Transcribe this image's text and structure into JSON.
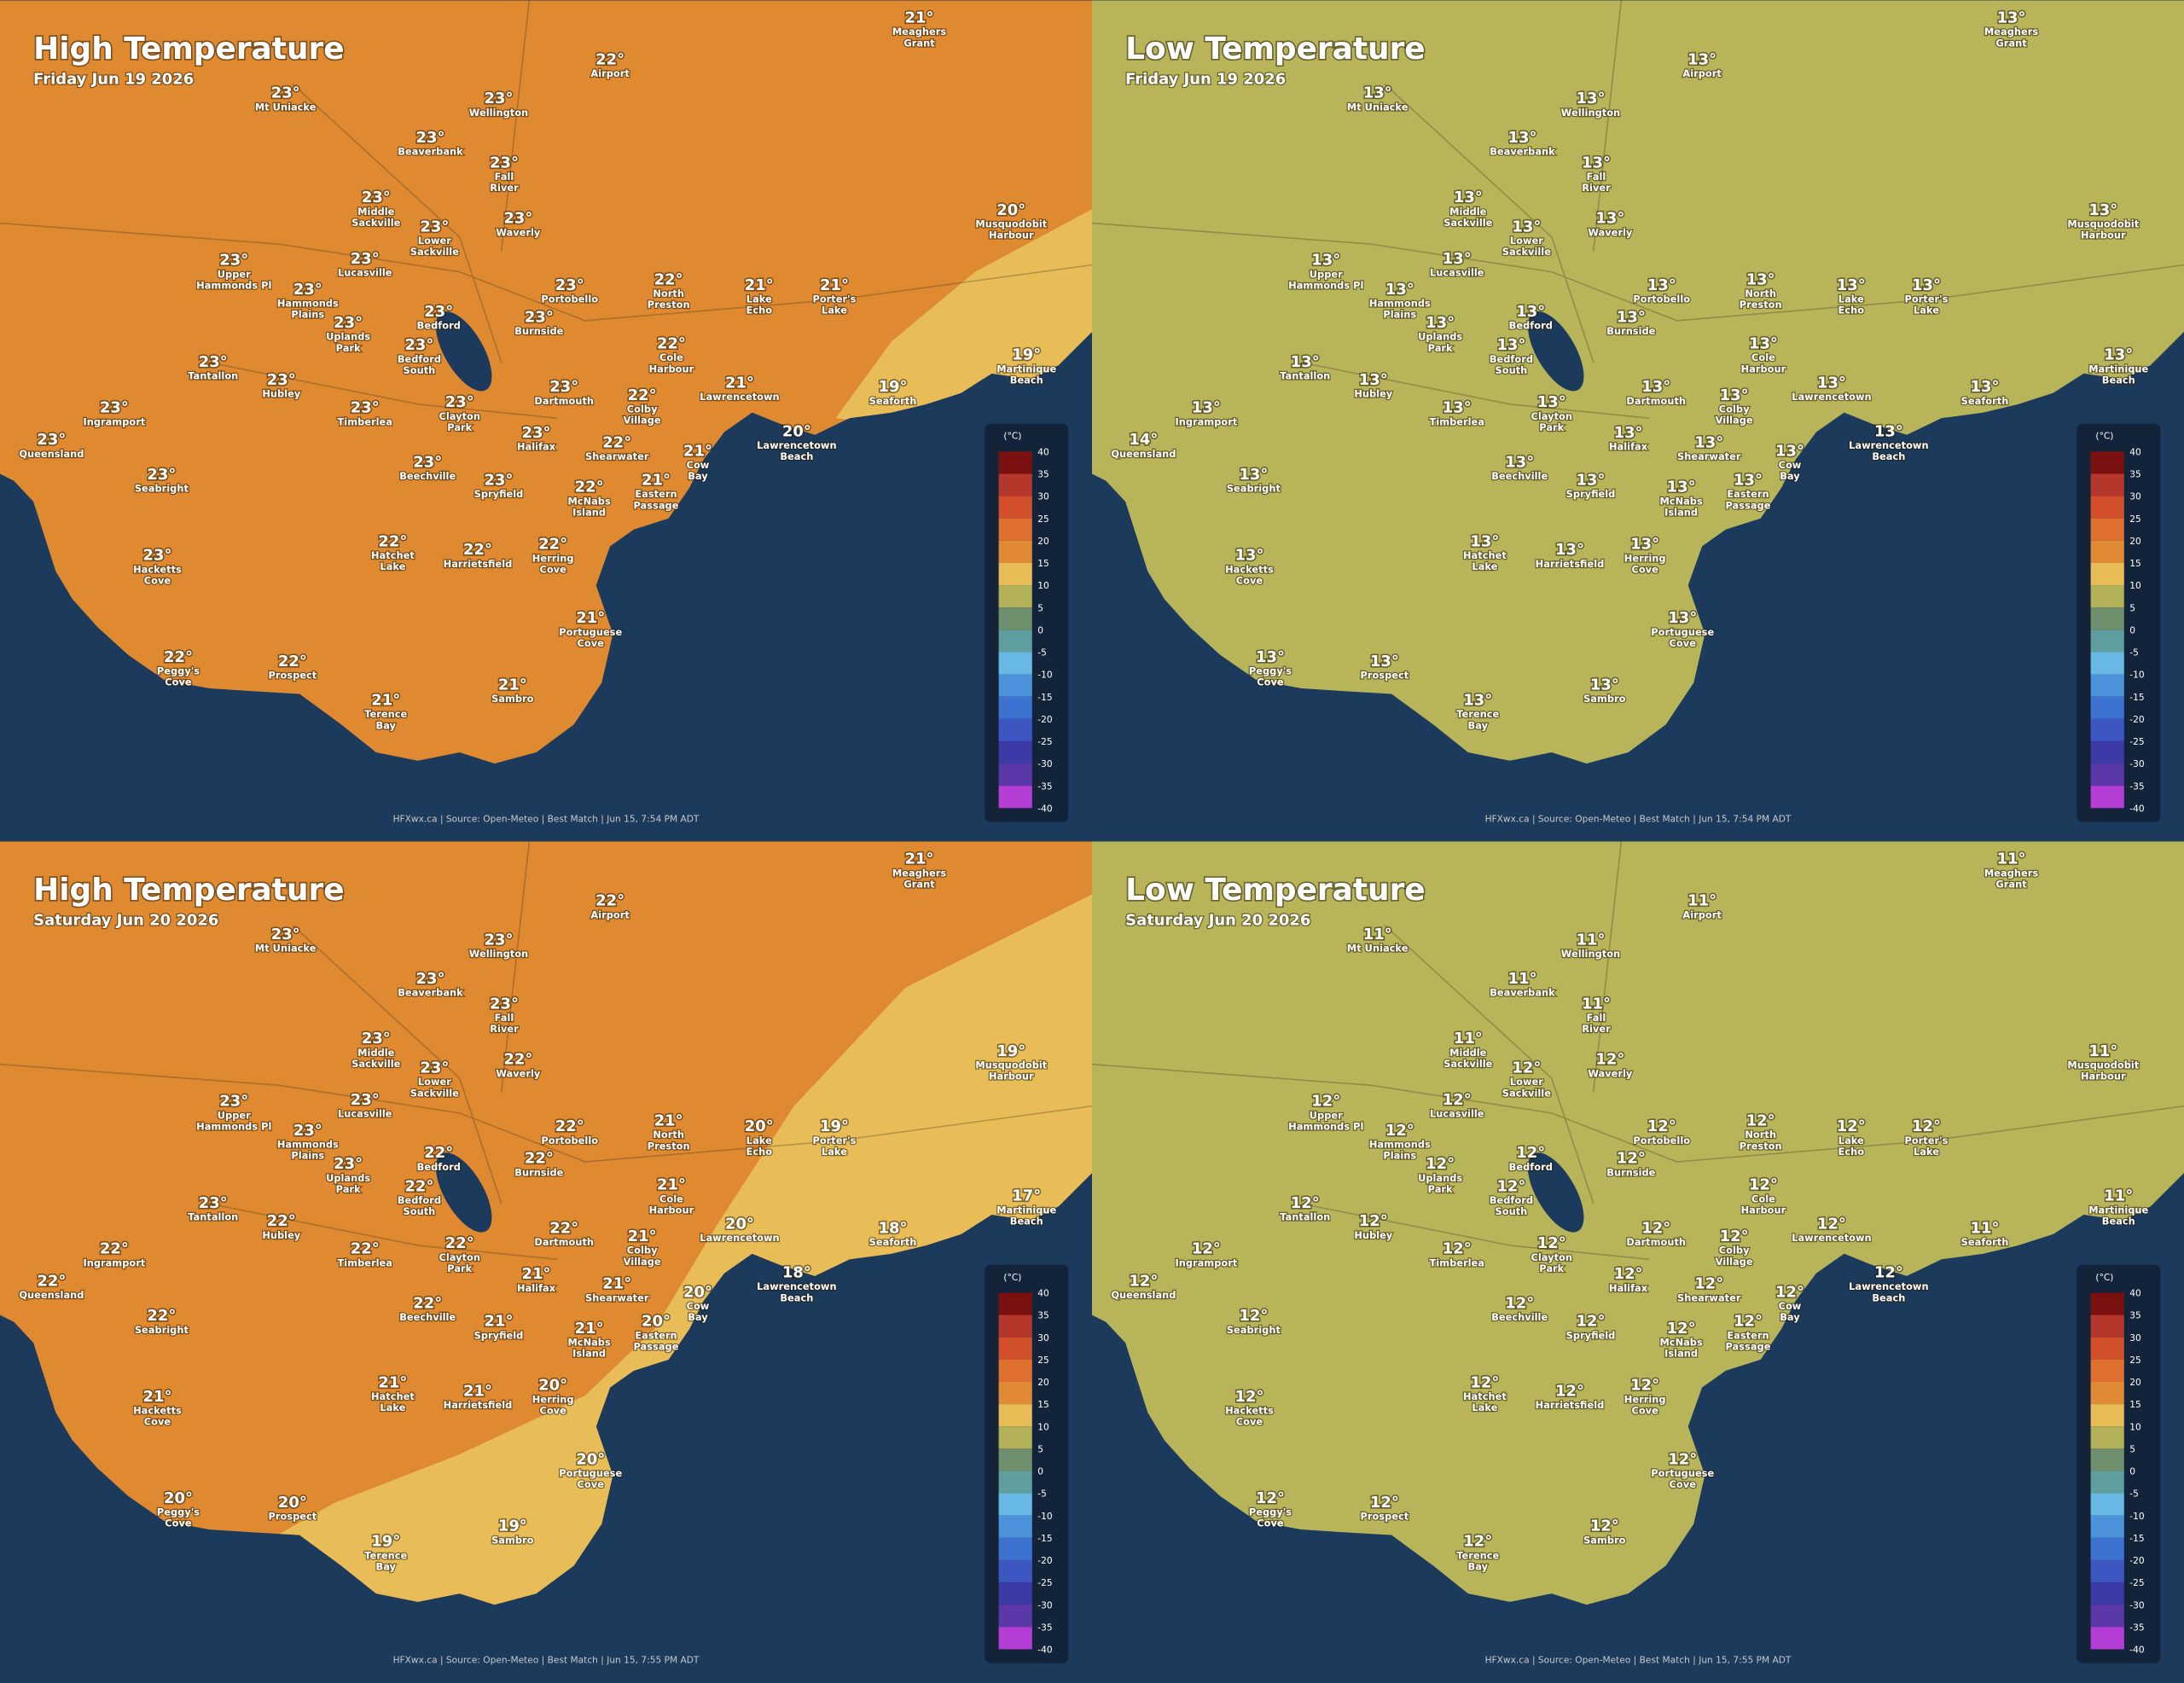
{
  "places": [
    [
      "Meaghers",
      "Grant"
    ],
    [
      "Airport"
    ],
    [
      "Mt Uniacke"
    ],
    [
      "Wellington"
    ],
    [
      "Beaverbank"
    ],
    [
      "Fall",
      "River"
    ],
    [
      "Middle",
      "Sackville"
    ],
    [
      "Lower",
      "Sackville"
    ],
    [
      "Waverly"
    ],
    [
      "Musquodobit",
      "Harbour"
    ],
    [
      "Upper",
      "Hammonds Pl"
    ],
    [
      "Lucasville"
    ],
    [
      "Hammonds",
      "Plains"
    ],
    [
      "Portobello"
    ],
    [
      "North",
      "Preston"
    ],
    [
      "Lake",
      "Echo"
    ],
    [
      "Porter's",
      "Lake"
    ],
    [
      "Uplands",
      "Park"
    ],
    [
      "Bedford"
    ],
    [
      "Burnside"
    ],
    [
      "Bedford",
      "South"
    ],
    [
      "Cole",
      "Harbour"
    ],
    [
      "Martinique",
      "Beach"
    ],
    [
      "Tantallon"
    ],
    [
      "Hubley"
    ],
    [
      "Dartmouth"
    ],
    [
      "Colby",
      "Village"
    ],
    [
      "Lawrencetown"
    ],
    [
      "Seaforth"
    ],
    [
      "Ingramport"
    ],
    [
      "Timberlea"
    ],
    [
      "Clayton",
      "Park"
    ],
    [
      "Halifax"
    ],
    [
      "Lawrencetown",
      "Beach"
    ],
    [
      "Shearwater"
    ],
    [
      "Cow",
      "Bay"
    ],
    [
      "Queensland"
    ],
    [
      "Beechville"
    ],
    [
      "Spryfield"
    ],
    [
      "McNabs",
      "Island"
    ],
    [
      "Eastern",
      "Passage"
    ],
    [
      "Seabright"
    ],
    [
      "Hatchet",
      "Lake"
    ],
    [
      "Harrietsfield"
    ],
    [
      "Herring",
      "Cove"
    ],
    [
      "Hacketts",
      "Cove"
    ],
    [
      "Portuguese",
      "Cove"
    ],
    [
      "Peggy's",
      "Cove"
    ],
    [
      "Prospect"
    ],
    [
      "Terence",
      "Bay"
    ],
    [
      "Sambro"
    ]
  ],
  "legend": {
    "unit": "(°C)",
    "ticks": [
      40,
      35,
      30,
      25,
      20,
      15,
      10,
      5,
      0,
      -5,
      -10,
      -15,
      -20,
      -25,
      -30,
      -35,
      -40
    ]
  },
  "panels": [
    {
      "title": "High Temperature",
      "date": "Friday Jun 19 2026",
      "footer": "HFXwx.ca | Source: Open-Meteo | Best Match | Jun 15, 7:54 PM ADT",
      "temps": [
        "21°",
        "22°",
        "23°",
        "23°",
        "23°",
        "23°",
        "23°",
        "23°",
        "23°",
        "20°",
        "23°",
        "23°",
        "23°",
        "23°",
        "22°",
        "21°",
        "21°",
        "23°",
        "23°",
        "23°",
        "23°",
        "22°",
        "19°",
        "23°",
        "23°",
        "23°",
        "22°",
        "21°",
        "19°",
        "23°",
        "23°",
        "23°",
        "23°",
        "20°",
        "22°",
        "21°",
        "23°",
        "23°",
        "23°",
        "22°",
        "21°",
        "23°",
        "22°",
        "22°",
        "22°",
        "23°",
        "21°",
        "22°",
        "22°",
        "21°",
        "21°"
      ]
    },
    {
      "title": "Low Temperature",
      "date": "Friday Jun 19 2026",
      "footer": "HFXwx.ca | Source: Open-Meteo | Best Match | Jun 15, 7:54 PM ADT",
      "temps": [
        "13°",
        "13°",
        "13°",
        "13°",
        "13°",
        "13°",
        "13°",
        "13°",
        "13°",
        "13°",
        "13°",
        "13°",
        "13°",
        "13°",
        "13°",
        "13°",
        "13°",
        "13°",
        "13°",
        "13°",
        "13°",
        "13°",
        "13°",
        "13°",
        "13°",
        "13°",
        "13°",
        "13°",
        "13°",
        "13°",
        "13°",
        "13°",
        "13°",
        "13°",
        "13°",
        "13°",
        "14°",
        "13°",
        "13°",
        "13°",
        "13°",
        "13°",
        "13°",
        "13°",
        "13°",
        "13°",
        "13°",
        "13°",
        "13°",
        "13°",
        "13°"
      ]
    },
    {
      "title": "High Temperature",
      "date": "Saturday Jun 20 2026",
      "footer": "HFXwx.ca | Source: Open-Meteo | Best Match | Jun 15, 7:55 PM ADT",
      "temps": [
        "21°",
        "22°",
        "23°",
        "23°",
        "23°",
        "23°",
        "23°",
        "23°",
        "22°",
        "19°",
        "23°",
        "23°",
        "23°",
        "22°",
        "21°",
        "20°",
        "19°",
        "23°",
        "22°",
        "22°",
        "22°",
        "21°",
        "17°",
        "23°",
        "22°",
        "22°",
        "21°",
        "20°",
        "18°",
        "22°",
        "22°",
        "22°",
        "21°",
        "18°",
        "21°",
        "20°",
        "22°",
        "22°",
        "21°",
        "21°",
        "20°",
        "22°",
        "21°",
        "21°",
        "20°",
        "21°",
        "20°",
        "20°",
        "20°",
        "19°",
        "19°"
      ]
    },
    {
      "title": "Low Temperature",
      "date": "Saturday Jun 20 2026",
      "footer": "HFXwx.ca | Source: Open-Meteo | Best Match | Jun 15, 7:55 PM ADT",
      "temps": [
        "11°",
        "11°",
        "11°",
        "11°",
        "11°",
        "11°",
        "11°",
        "12°",
        "12°",
        "11°",
        "12°",
        "12°",
        "12°",
        "12°",
        "12°",
        "12°",
        "12°",
        "12°",
        "12°",
        "12°",
        "12°",
        "12°",
        "11°",
        "12°",
        "12°",
        "12°",
        "12°",
        "12°",
        "11°",
        "12°",
        "12°",
        "12°",
        "12°",
        "12°",
        "12°",
        "12°",
        "12°",
        "12°",
        "12°",
        "12°",
        "12°",
        "12°",
        "12°",
        "12°",
        "12°",
        "12°",
        "12°",
        "12°",
        "12°",
        "12°",
        "12°"
      ]
    }
  ]
}
